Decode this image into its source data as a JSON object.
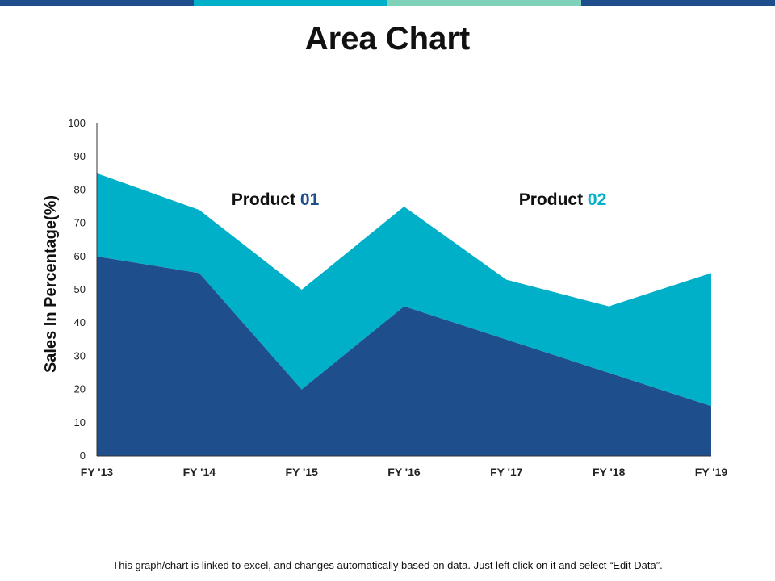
{
  "top_bar": {
    "colors": [
      "#1f4e8c",
      "#00b0c8",
      "#7fd1b9",
      "#1f4e8c"
    ]
  },
  "page": {
    "title": "Area Chart",
    "footer": "This graph/chart is linked to excel, and changes automatically based on data. Just left click on it and select “Edit Data”."
  },
  "chart_data": {
    "type": "area",
    "stacked": true,
    "categories": [
      "FY '13",
      "FY '14",
      "FY '15",
      "FY '16",
      "FY '17",
      "FY '18",
      "FY '19"
    ],
    "series": [
      {
        "name_prefix": "Product ",
        "name_number": "01",
        "values": [
          60,
          55,
          20,
          45,
          35,
          25,
          15
        ],
        "color": "#1f4e8c",
        "number_color": "#1f4e8c"
      },
      {
        "name_prefix": "Product ",
        "name_number": "02",
        "values": [
          25,
          19,
          30,
          30,
          18,
          20,
          40
        ],
        "color": "#00b0c8",
        "number_color": "#00b0c8"
      }
    ],
    "ylabel": "Sales In Percentage(%)",
    "xlabel": "",
    "ylim": [
      0,
      100
    ],
    "yticks": [
      0,
      10,
      20,
      30,
      40,
      50,
      60,
      70,
      80,
      90,
      100
    ],
    "grid": false,
    "legend": "inline-labels"
  }
}
